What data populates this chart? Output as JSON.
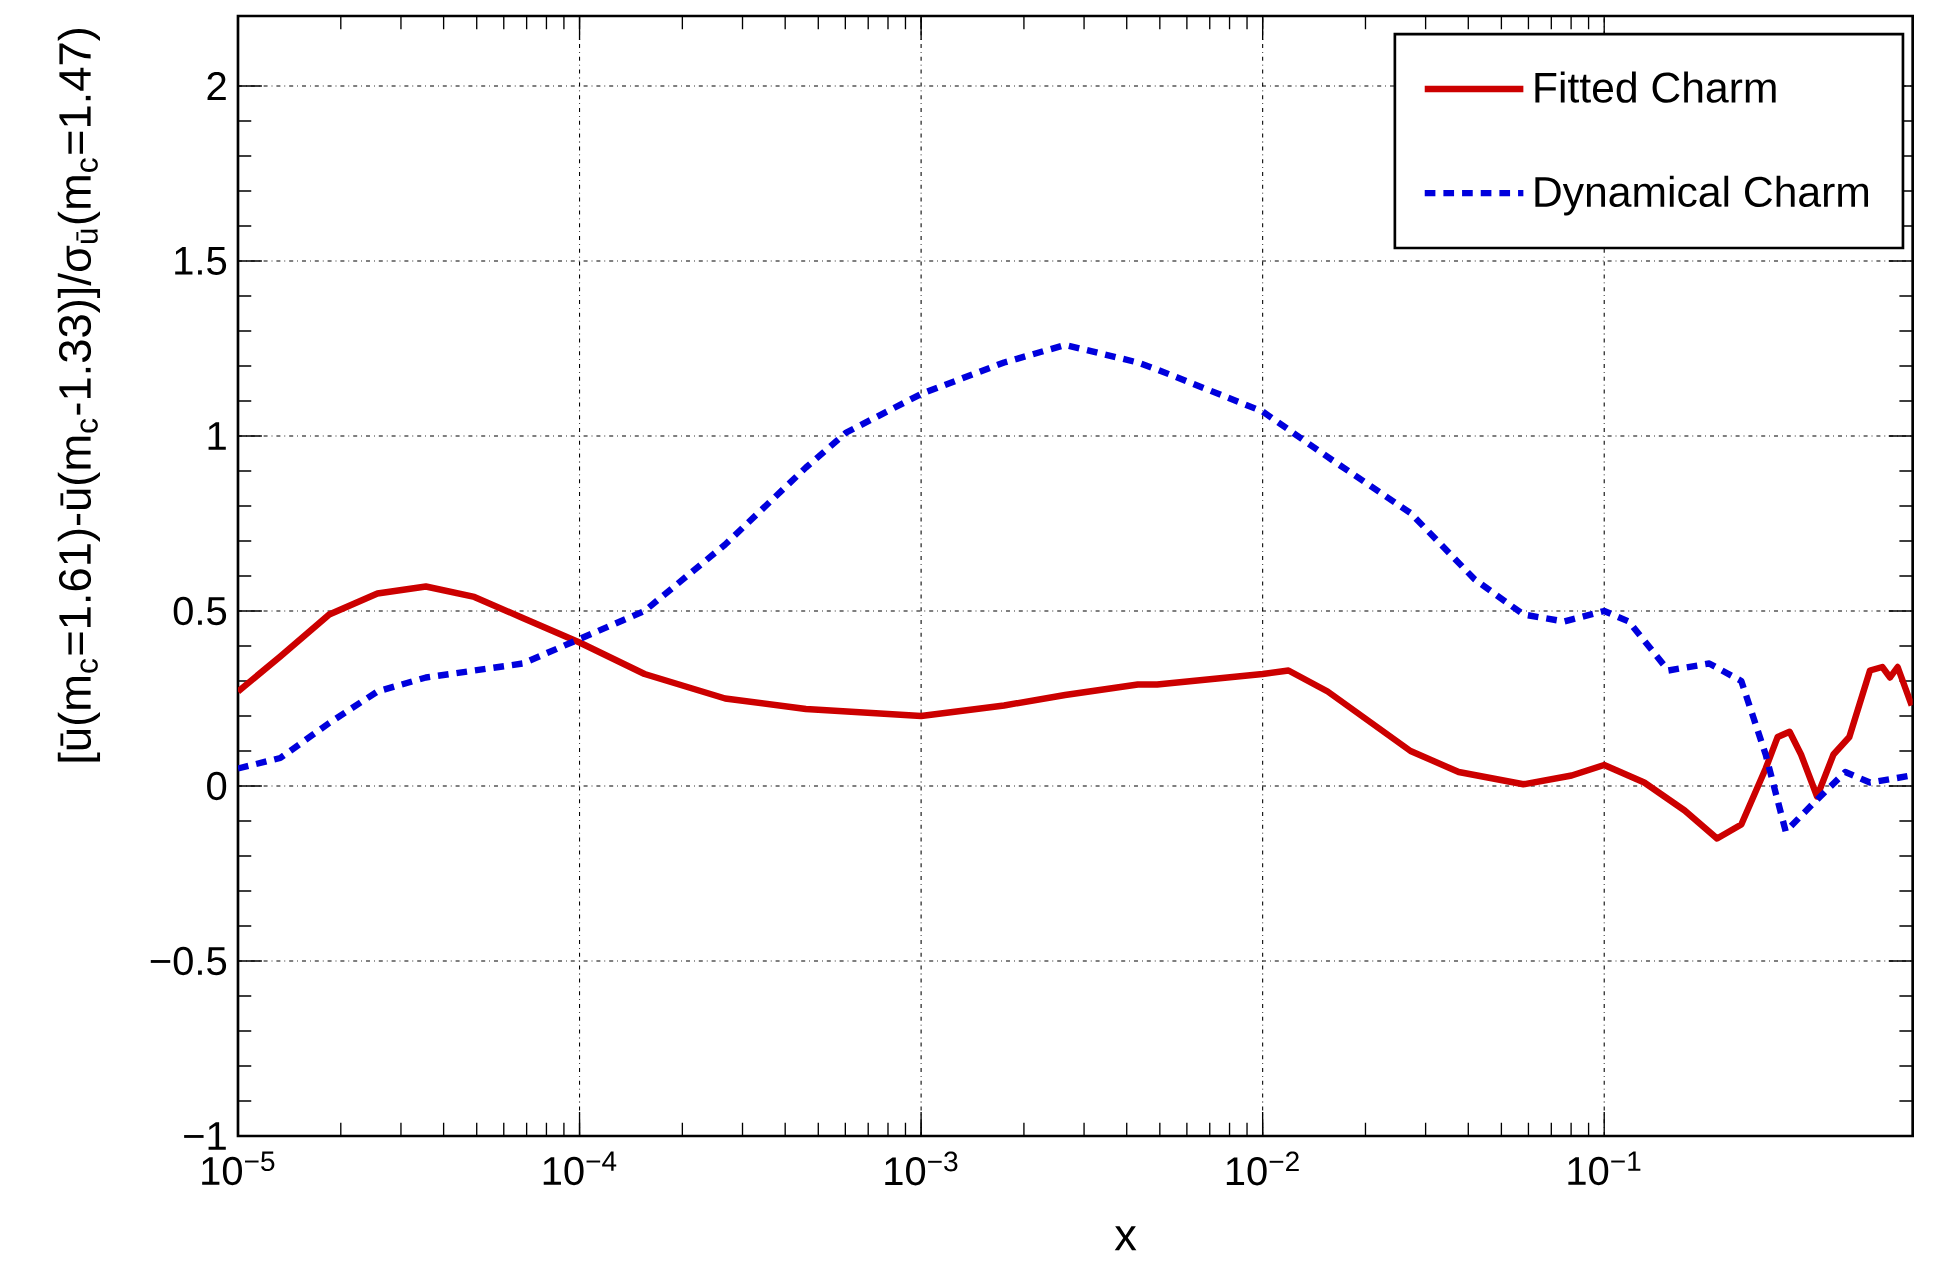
{
  "chart_data": {
    "type": "line",
    "xlabel": "x",
    "ylabel": "[ū(m$_{c}$=1.61)-ū(m$_{c}$-1.33)]/σ$_{ū}$(m$_{c}$=1.47)",
    "log": "x",
    "grid": true,
    "legend": "top right",
    "marker": "none",
    "xlim": [
      1e-05,
      0.8
    ],
    "ylim": [
      -1,
      2.2
    ],
    "xticks": [
      {
        "value": 1e-05,
        "label": "10$^{−5}$"
      },
      {
        "value": 0.0001,
        "label": "10$^{−4}$"
      },
      {
        "value": 0.001,
        "label": "10$^{−3}$"
      },
      {
        "value": 0.01,
        "label": "10$^{−2}$"
      },
      {
        "value": 0.1,
        "label": "10$^{−1}$"
      }
    ],
    "yticks": [
      {
        "value": -1,
        "label": "−1"
      },
      {
        "value": -0.5,
        "label": "−0.5"
      },
      0,
      0.5,
      1,
      1.5,
      2
    ],
    "series": [
      {
        "name": "Fitted Charm",
        "color": "#cc0000",
        "line_style": "solid",
        "x": [
          1e-05,
          1.33e-05,
          1.85e-05,
          2.56e-05,
          3.55e-05,
          4.92e-05,
          6.82e-05,
          0.0001,
          0.000155,
          0.000267,
          0.00046,
          0.001,
          0.00175,
          0.00264,
          0.00431,
          0.00491,
          0.01,
          0.0119,
          0.0155,
          0.0271,
          0.0375,
          0.058,
          0.0803,
          0.1,
          0.131,
          0.172,
          0.214,
          0.252,
          0.297,
          0.322,
          0.349,
          0.377,
          0.42,
          0.469,
          0.522,
          0.6,
          0.652,
          0.687,
          0.723,
          0.795
        ],
        "values": [
          0.27,
          0.37,
          0.49,
          0.55,
          0.57,
          0.54,
          0.48,
          0.41,
          0.32,
          0.25,
          0.22,
          0.2,
          0.23,
          0.26,
          0.29,
          0.29,
          0.32,
          0.33,
          0.27,
          0.1,
          0.04,
          0.005,
          0.03,
          0.06,
          0.01,
          -0.07,
          -0.15,
          -0.11,
          0.05,
          0.14,
          0.155,
          0.09,
          -0.03,
          0.09,
          0.14,
          0.33,
          0.34,
          0.31,
          0.34,
          0.23
        ]
      },
      {
        "name": "Dynamical Charm",
        "color": "#0000dd",
        "line_style": "dotted",
        "x": [
          1e-05,
          1.33e-05,
          1.85e-05,
          2.56e-05,
          3.55e-05,
          4.92e-05,
          6.82e-05,
          0.0001,
          0.000155,
          0.000267,
          0.00046,
          0.000604,
          0.001,
          0.00175,
          0.00264,
          0.00292,
          0.00431,
          0.00491,
          0.01,
          0.0155,
          0.0271,
          0.0418,
          0.058,
          0.0762,
          0.1,
          0.118,
          0.154,
          0.203,
          0.252,
          0.297,
          0.34,
          0.409,
          0.508,
          0.6,
          0.795
        ],
        "values": [
          0.05,
          0.08,
          0.18,
          0.27,
          0.31,
          0.33,
          0.35,
          0.42,
          0.5,
          0.69,
          0.91,
          1.01,
          1.12,
          1.21,
          1.26,
          1.25,
          1.21,
          1.19,
          1.07,
          0.94,
          0.78,
          0.59,
          0.49,
          0.47,
          0.5,
          0.47,
          0.33,
          0.35,
          0.3,
          0.09,
          -0.13,
          -0.05,
          0.04,
          0.01,
          0.03
        ]
      }
    ]
  }
}
